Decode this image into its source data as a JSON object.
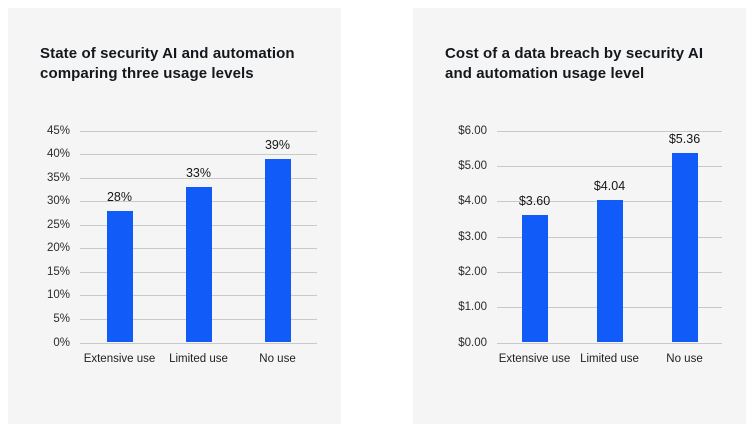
{
  "page": {
    "background": "#ffffff",
    "card_background": "#f5f5f6",
    "accent": "#115bf8",
    "gridline_color": "#c9c9c9"
  },
  "chart_data": [
    {
      "type": "bar",
      "title": "State of security AI and automation comparing three usage levels",
      "categories": [
        "Extensive use",
        "Limited use",
        "No use"
      ],
      "values": [
        28,
        33,
        39
      ],
      "value_labels": [
        "28%",
        "33%",
        "39%"
      ],
      "ylim": [
        0,
        45
      ],
      "ytick_step": 5,
      "ytick_labels": [
        "0%",
        "5%",
        "10%",
        "15%",
        "20%",
        "25%",
        "30%",
        "35%",
        "40%",
        "45%"
      ],
      "grid": true,
      "legend": "none",
      "bar_color": "#115bf8",
      "ylabel_col_width": 30
    },
    {
      "type": "bar",
      "title": "Cost of a data breach by security AI and automation usage level",
      "categories": [
        "Extensive use",
        "Limited use",
        "No use"
      ],
      "values": [
        3.6,
        4.04,
        5.36
      ],
      "value_labels": [
        "$3.60",
        "$4.04",
        "$5.36"
      ],
      "ylim": [
        0,
        6
      ],
      "ytick_step": 1,
      "ytick_labels": [
        "$0.00",
        "$1.00",
        "$2.00",
        "$3.00",
        "$4.00",
        "$5.00",
        "$6.00"
      ],
      "grid": true,
      "legend": "none",
      "bar_color": "#115bf8",
      "ylabel_col_width": 42
    }
  ]
}
